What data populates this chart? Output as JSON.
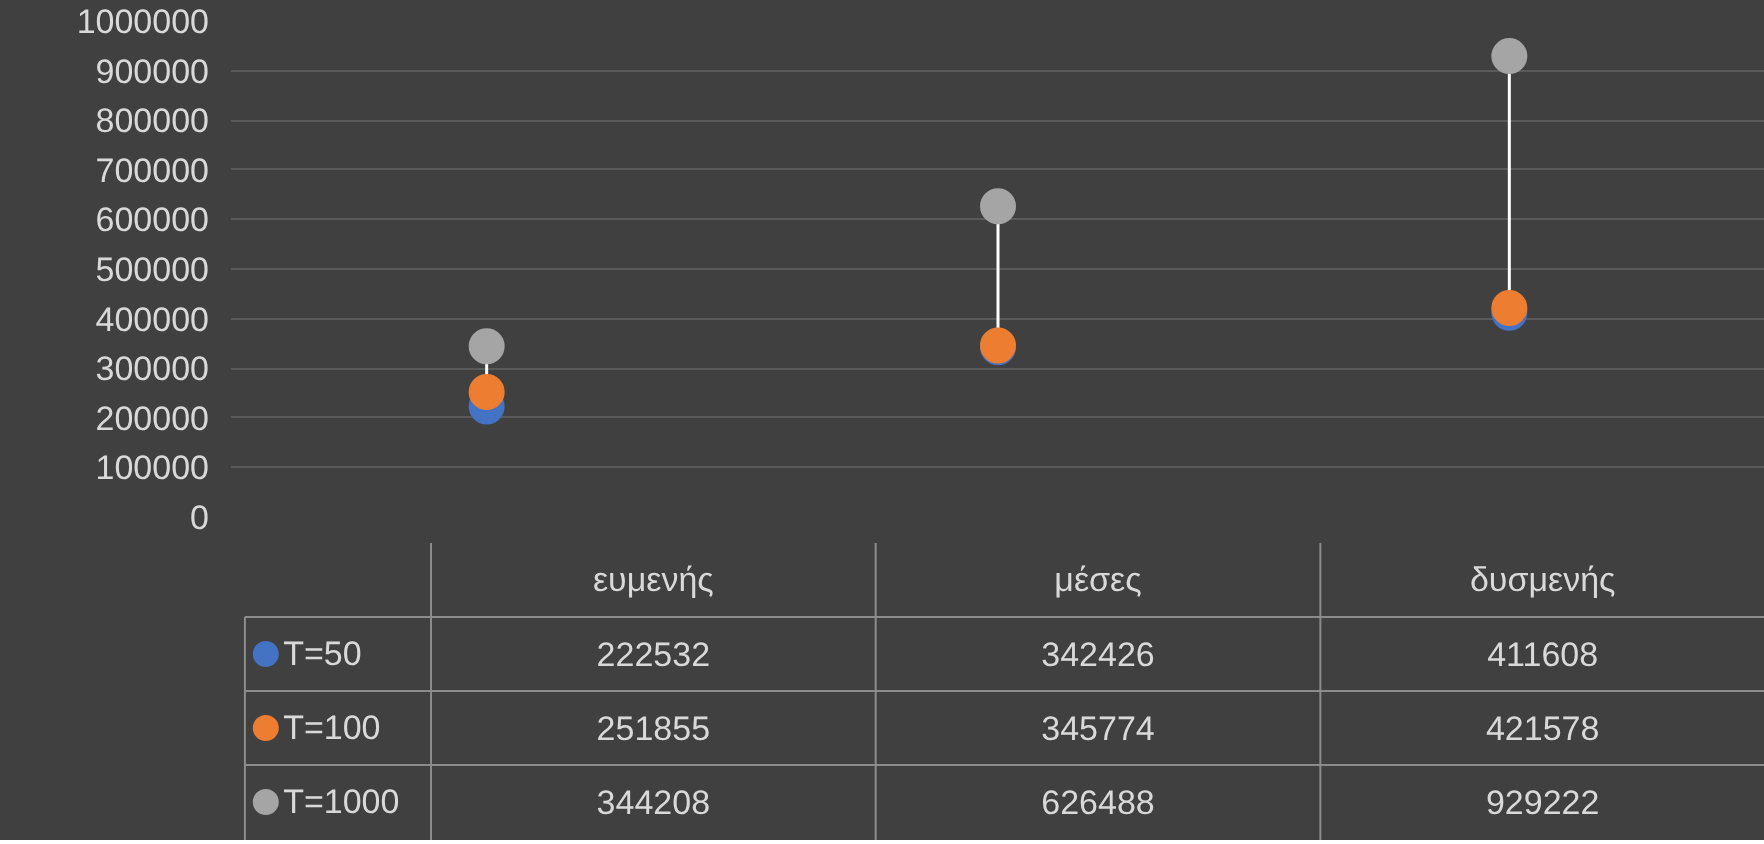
{
  "chart_data": {
    "type": "scatter",
    "categories": [
      "ευμενής",
      "μέσες",
      "δυσμενής"
    ],
    "series": [
      {
        "name": "T=50",
        "color": "#4472c4",
        "values": [
          222532,
          342426,
          411608
        ]
      },
      {
        "name": "T=100",
        "color": "#ed7d31",
        "values": [
          251855,
          345774,
          421578
        ]
      },
      {
        "name": "T=1000",
        "color": "#a5a5a5",
        "values": [
          344208,
          626488,
          929222
        ]
      }
    ],
    "ylim": [
      0,
      1000000
    ],
    "yticks": [
      0,
      100000,
      200000,
      300000,
      400000,
      500000,
      600000,
      700000,
      800000,
      900000,
      1000000
    ],
    "grid": "y",
    "legend": "bottom",
    "marker": "circle",
    "data_labels": true
  }
}
